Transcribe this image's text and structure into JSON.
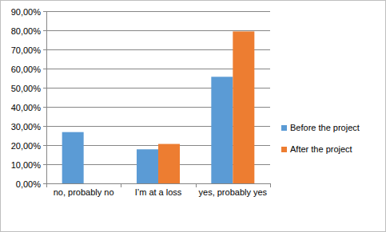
{
  "chart_data": {
    "type": "bar",
    "categories": [
      "no, probably no",
      "I’m at a loss",
      "yes, probably yes"
    ],
    "series": [
      {
        "name": "Before the project",
        "color": "#5b9bd5",
        "values": [
          26.8,
          17.8,
          55.7
        ]
      },
      {
        "name": "After the project",
        "color": "#ed7d31",
        "values": [
          0,
          20.6,
          79.4
        ]
      }
    ],
    "ylim": [
      0,
      90
    ],
    "yticks": [
      {
        "value": 0,
        "label": "0,00%"
      },
      {
        "value": 10,
        "label": "10,00%"
      },
      {
        "value": 20,
        "label": "20,00%"
      },
      {
        "value": 30,
        "label": "30,00%"
      },
      {
        "value": 40,
        "label": "40,00%"
      },
      {
        "value": 50,
        "label": "50,00%"
      },
      {
        "value": 60,
        "label": "60,00%"
      },
      {
        "value": 70,
        "label": "70,00%"
      },
      {
        "value": 80,
        "label": "80,00%"
      },
      {
        "value": 90,
        "label": "90,00%"
      }
    ],
    "grid": true,
    "legend": "right"
  }
}
